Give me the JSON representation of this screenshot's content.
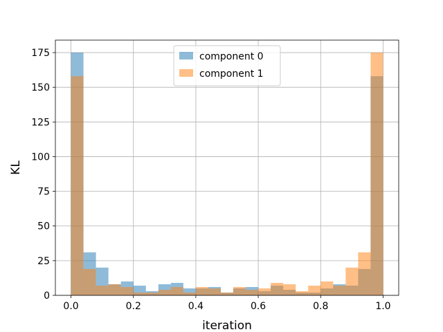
{
  "chart_data": {
    "type": "histogram",
    "xlabel": "iteration",
    "ylabel": "KL",
    "xlim": [
      -0.05,
      1.05
    ],
    "ylim": [
      0,
      184
    ],
    "xticks": [
      0.0,
      0.2,
      0.4,
      0.6,
      0.8,
      1.0
    ],
    "xtick_labels": [
      "0.0",
      "0.2",
      "0.4",
      "0.6",
      "0.8",
      "1.0"
    ],
    "yticks": [
      0,
      25,
      50,
      75,
      100,
      125,
      150,
      175
    ],
    "ytick_labels": [
      "0",
      "25",
      "50",
      "75",
      "100",
      "125",
      "150",
      "175"
    ],
    "grid": true,
    "legend_position": "top-center",
    "bin_start": 0.0,
    "bin_width": 0.04,
    "series": [
      {
        "name": "component 0",
        "color": "#1f77b4",
        "alpha": 0.5,
        "counts": [
          175,
          31,
          20,
          8,
          10,
          7,
          3,
          8,
          9,
          5,
          5,
          6,
          2,
          5,
          6,
          3,
          7,
          4,
          2,
          2,
          5,
          8,
          7,
          19,
          158
        ]
      },
      {
        "name": "component 1",
        "color": "#ff7f0e",
        "alpha": 0.5,
        "counts": [
          158,
          19,
          7,
          8,
          6,
          2,
          2,
          4,
          6,
          2,
          6,
          5,
          2,
          6,
          4,
          5,
          9,
          8,
          3,
          7,
          10,
          7,
          20,
          31,
          175
        ]
      }
    ]
  }
}
